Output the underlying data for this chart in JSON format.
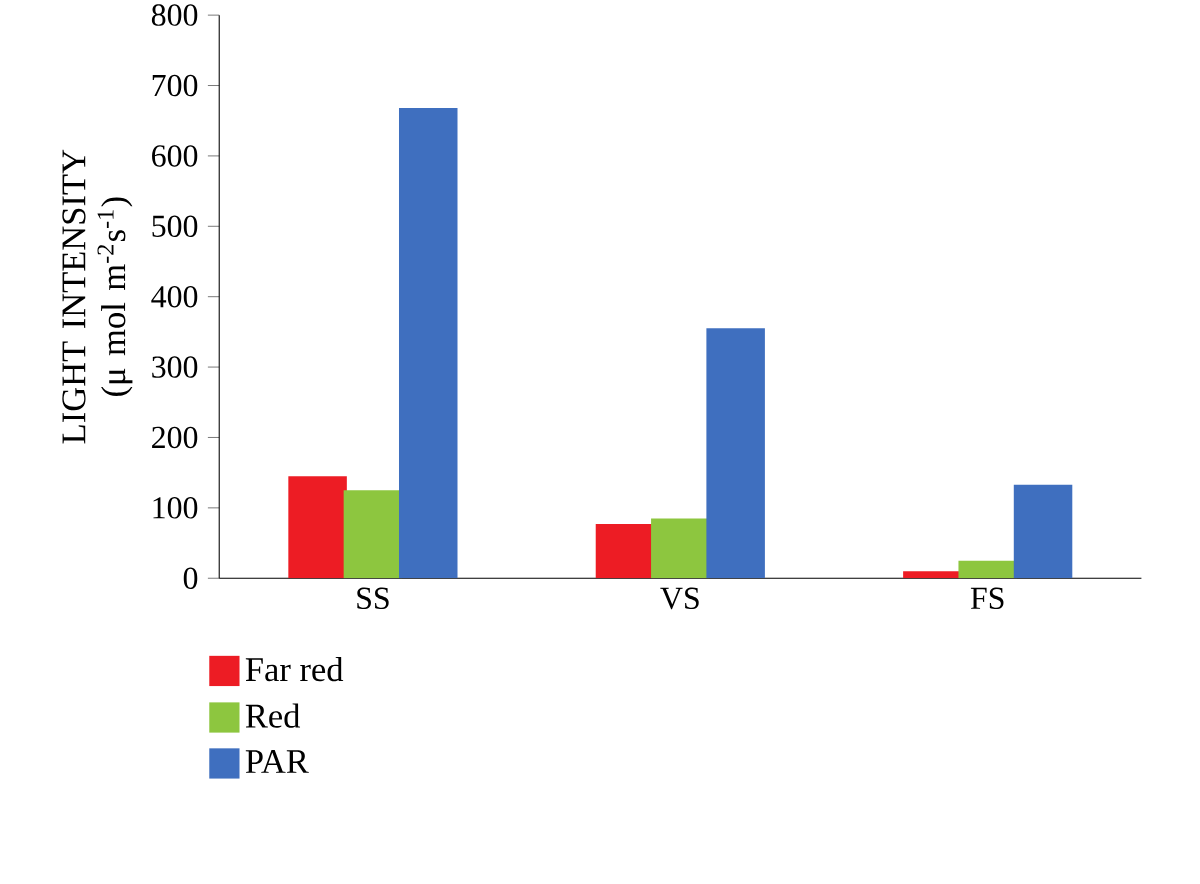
{
  "chart_data": {
    "type": "bar",
    "ylabel": "LIGHT INTENSITY (μ mol m$^{-2}$s$^{-1}$)",
    "categories": [
      "SS",
      "VS",
      "FS"
    ],
    "series": [
      {
        "name": "Far red",
        "color": "#ed1c24",
        "values": [
          145,
          77,
          10
        ]
      },
      {
        "name": "Red",
        "color": "#8dc63f",
        "values": [
          125,
          85,
          25
        ]
      },
      {
        "name": "PAR",
        "color": "#3f6fbf",
        "values": [
          668,
          355,
          133
        ]
      }
    ],
    "ylim": [
      0,
      800
    ],
    "yticks": [
      0,
      100,
      200,
      300,
      400,
      500,
      600,
      700,
      800
    ],
    "grid": false,
    "legend": "bottom left"
  }
}
